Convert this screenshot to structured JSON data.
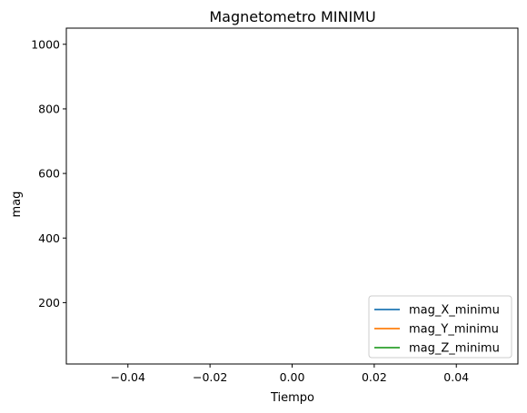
{
  "chart_data": {
    "type": "line",
    "title": "Magnetometro MINIMU",
    "xlabel": "Tiempo",
    "ylabel": "mag",
    "xlim": [
      -0.055,
      0.055
    ],
    "ylim": [
      10,
      1050
    ],
    "xticks": [
      -0.04,
      -0.02,
      0.0,
      0.02,
      0.04
    ],
    "xtick_labels": [
      "−0.04",
      "−0.02",
      "0.00",
      "0.02",
      "0.04"
    ],
    "yticks": [
      200,
      400,
      600,
      800,
      1000
    ],
    "ytick_labels": [
      "200",
      "400",
      "600",
      "800",
      "1000"
    ],
    "grid": false,
    "legend_position": "lower-right",
    "series": [
      {
        "name": "mag_X_minimu",
        "color": "#1f77b4",
        "x": [],
        "y": []
      },
      {
        "name": "mag_Y_minimu",
        "color": "#ff7f0e",
        "x": [],
        "y": []
      },
      {
        "name": "mag_Z_minimu",
        "color": "#2ca02c",
        "x": [],
        "y": []
      }
    ]
  }
}
